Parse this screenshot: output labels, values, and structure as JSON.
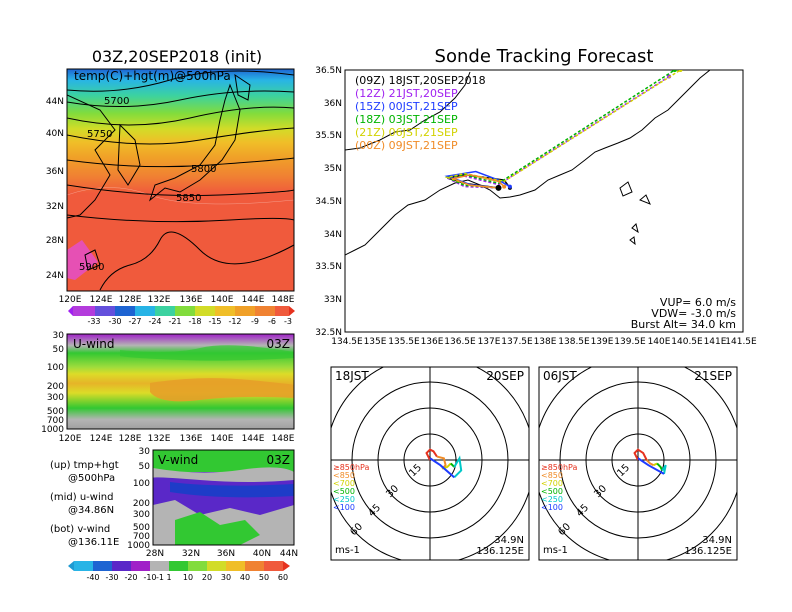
{
  "left_top": {
    "title": "03Z,20SEP2018 (init)",
    "label": "temp(C)+hgt(m)@500hPa",
    "lat_ticks": [
      "44N",
      "40N",
      "36N",
      "32N",
      "28N",
      "24N"
    ],
    "lon_ticks": [
      "120E",
      "124E",
      "128E",
      "132E",
      "136E",
      "140E",
      "144E",
      "148E"
    ],
    "contours": [
      "5700",
      "5750",
      "5800",
      "5850",
      "5900"
    ],
    "colorbar": [
      "-33",
      "-30",
      "-27",
      "-24",
      "-21",
      "-18",
      "-15",
      "-12",
      "-9",
      "-6",
      "-3"
    ]
  },
  "left_mid": {
    "label": "U-wind",
    "time": "03Z",
    "p_ticks": [
      "30",
      "50",
      "100",
      "200",
      "300",
      "500",
      "700",
      "1000"
    ],
    "lon_ticks": [
      "120E",
      "124E",
      "128E",
      "132E",
      "136E",
      "140E",
      "144E",
      "148E"
    ]
  },
  "left_bot": {
    "label": "V-wind",
    "time": "03Z",
    "p_ticks": [
      "30",
      "50",
      "100",
      "200",
      "300",
      "500",
      "700",
      "1000"
    ],
    "lat_ticks": [
      "28N",
      "32N",
      "36N",
      "40N",
      "44N"
    ],
    "notes": [
      "(up) tmp+hgt",
      "@500hPa",
      "(mid) u-wind",
      "@34.86N",
      "(bot) v-wind",
      "@136.11E"
    ],
    "colorbar": [
      "-40",
      "-30",
      "-20",
      "-10",
      "-1",
      "1",
      "10",
      "20",
      "30",
      "40",
      "50",
      "60"
    ]
  },
  "track": {
    "title": "Sonde Tracking Forecast",
    "lat_ticks": [
      "36.5N",
      "36N",
      "35.5N",
      "35N",
      "34.5N",
      "34N",
      "33.5N",
      "33N",
      "32.5N"
    ],
    "lon_ticks": [
      "134.5E",
      "135E",
      "135.5E",
      "136E",
      "136.5E",
      "137E",
      "137.5E",
      "138E",
      "138.5E",
      "139E",
      "139.5E",
      "140E",
      "140.5E",
      "141E",
      "141.5E"
    ],
    "legend": [
      {
        "text": "(09Z)  18JST,20SEP2018",
        "color": "#000000"
      },
      {
        "text": "(12Z)  21JST,20SEP",
        "color": "#a020f0"
      },
      {
        "text": "(15Z)  00JST,21SEP",
        "color": "#1e3cff"
      },
      {
        "text": "(18Z)  03JST,21SEP",
        "color": "#00b400"
      },
      {
        "text": "(21Z)  06JST,21SEP",
        "color": "#d2d200"
      },
      {
        "text": "(00Z)  09JST,21SEP",
        "color": "#f08c28"
      }
    ],
    "params": [
      "VUP= 6.0 m/s",
      "VDW= -3.0 m/s",
      "Burst Alt= 34.0 km"
    ]
  },
  "hodo1": {
    "time": "18JST",
    "date": "20SEP",
    "rings": [
      "15",
      "30",
      "45",
      "60"
    ],
    "levels": [
      {
        "text": "≥850hPa",
        "color": "#e6321e"
      },
      {
        "text": "<850",
        "color": "#f08c28"
      },
      {
        "text": "<700",
        "color": "#d2d200"
      },
      {
        "text": "<500",
        "color": "#00b400"
      },
      {
        "text": "<250",
        "color": "#00c8c8"
      },
      {
        "text": "<100",
        "color": "#1e3cff"
      }
    ],
    "unit": "ms-1",
    "pos_lat": "34.9N",
    "pos_lon": "136.125E"
  },
  "hodo2": {
    "time": "06JST",
    "date": "21SEP",
    "rings": [
      "15",
      "30",
      "45",
      "60"
    ],
    "levels": [
      {
        "text": "≥850hPa",
        "color": "#e6321e"
      },
      {
        "text": "<850",
        "color": "#f08c28"
      },
      {
        "text": "<700",
        "color": "#d2d200"
      },
      {
        "text": "<500",
        "color": "#00b400"
      },
      {
        "text": "<250",
        "color": "#00c8c8"
      },
      {
        "text": "<100",
        "color": "#1e3cff"
      }
    ],
    "unit": "ms-1",
    "pos_lat": "34.9N",
    "pos_lon": "136.125E"
  },
  "chart_data": [
    {
      "type": "heatmap",
      "title": "03Z,20SEP2018 (init)",
      "subtitle": "temp(C)+hgt(m)@500hPa",
      "x_range": [
        "120E",
        "149E"
      ],
      "y_range": [
        "22N",
        "47N"
      ],
      "colorbar_levels": [
        -33,
        -30,
        -27,
        -24,
        -21,
        -18,
        -15,
        -12,
        -9,
        -6,
        -3
      ],
      "contours": [
        5700,
        5750,
        5800,
        5850,
        5900
      ]
    },
    {
      "type": "heatmap",
      "title": "U-wind",
      "subtitle": "03Z",
      "x_range": [
        "120E",
        "149E"
      ],
      "y_levels_hPa": [
        30,
        50,
        100,
        200,
        300,
        500,
        700,
        1000
      ]
    },
    {
      "type": "heatmap",
      "title": "V-wind",
      "subtitle": "03Z",
      "x_range": [
        "28N",
        "44N"
      ],
      "y_levels_hPa": [
        30,
        50,
        100,
        200,
        300,
        500,
        700,
        1000
      ],
      "colorbar_levels": [
        -40,
        -30,
        -20,
        -10,
        -1,
        1,
        10,
        20,
        30,
        40,
        50,
        60
      ]
    },
    {
      "type": "line",
      "title": "Sonde Tracking Forecast",
      "xlim": [
        134.5,
        141.5
      ],
      "ylim": [
        32.5,
        36.5
      ],
      "launch": {
        "lon": 137.2,
        "lat": 34.7
      },
      "series": [
        {
          "name": "(09Z)  18JST,20SEP2018",
          "x": [
            137.2,
            136.6,
            136.3,
            136.6,
            137.3,
            137.4
          ],
          "y": [
            34.7,
            34.77,
            34.85,
            34.9,
            34.82,
            34.7
          ]
        },
        {
          "name": "(12Z)  21JST,20SEP",
          "x": [
            137.2,
            136.6,
            136.3,
            136.6,
            137.2,
            140.2
          ],
          "y": [
            34.7,
            34.72,
            34.85,
            34.88,
            34.75,
            36.4
          ]
        },
        {
          "name": "(15Z)  00JST,21SEP",
          "x": [
            137.2,
            136.7,
            136.3,
            136.8,
            137.2,
            137.4
          ],
          "y": [
            34.7,
            34.75,
            34.88,
            34.95,
            34.82,
            34.72
          ]
        },
        {
          "name": "(18Z)  03JST,21SEP",
          "x": [
            137.2,
            136.6,
            136.3,
            136.6,
            137.2,
            140.3
          ],
          "y": [
            34.7,
            34.74,
            34.86,
            34.9,
            34.77,
            36.5
          ]
        },
        {
          "name": "(21Z)  06JST,21SEP",
          "x": [
            137.2,
            136.7,
            136.3,
            136.6,
            137.3,
            140.4
          ],
          "y": [
            34.7,
            34.74,
            34.86,
            34.92,
            34.8,
            36.5
          ]
        },
        {
          "name": "(00Z)  09JST,21SEP",
          "x": [
            137.2,
            136.7,
            136.4,
            136.7,
            137.2,
            137.3
          ],
          "y": [
            34.7,
            34.74,
            34.84,
            34.9,
            34.8,
            34.72
          ]
        }
      ]
    },
    {
      "type": "line",
      "title": "18JST 20SEP hodograph",
      "rings": [
        15,
        30,
        45,
        60
      ],
      "unit": "ms-1",
      "series": [
        {
          "name": "≥850hPa",
          "u": [
            0,
            -2,
            0,
            2,
            4
          ],
          "v": [
            0,
            4,
            6,
            5,
            2
          ]
        },
        {
          "name": "<850",
          "u": [
            4,
            8,
            9,
            7
          ],
          "v": [
            2,
            1,
            -3,
            -5
          ]
        },
        {
          "name": "<700",
          "u": [
            7,
            10,
            12
          ],
          "v": [
            -5,
            -4,
            -2
          ]
        },
        {
          "name": "<500",
          "u": [
            12,
            14
          ],
          "v": [
            -2,
            -4
          ]
        },
        {
          "name": "<250",
          "u": [
            14,
            17,
            18,
            14
          ],
          "v": [
            -4,
            1,
            -6,
            -10
          ]
        },
        {
          "name": "<100",
          "u": [
            14,
            6,
            0
          ],
          "v": [
            -10,
            -3,
            1
          ]
        }
      ]
    },
    {
      "type": "line",
      "title": "06JST 21SEP hodograph",
      "rings": [
        15,
        30,
        45,
        60
      ],
      "unit": "ms-1",
      "series": [
        {
          "name": "≥850hPa",
          "u": [
            0,
            -2,
            0,
            3,
            5
          ],
          "v": [
            0,
            4,
            6,
            4,
            0
          ]
        },
        {
          "name": "<850",
          "u": [
            5,
            7,
            9
          ],
          "v": [
            0,
            -2,
            -3
          ]
        },
        {
          "name": "<700",
          "u": [
            9,
            11
          ],
          "v": [
            -3,
            -2
          ]
        },
        {
          "name": "<500",
          "u": [
            11,
            13,
            14
          ],
          "v": [
            -2,
            -4,
            -6
          ]
        },
        {
          "name": "<250",
          "u": [
            14,
            16,
            15
          ],
          "v": [
            -6,
            -3,
            -8
          ]
        },
        {
          "name": "<100",
          "u": [
            15,
            6,
            0
          ],
          "v": [
            -8,
            -3,
            1
          ]
        }
      ]
    }
  ]
}
